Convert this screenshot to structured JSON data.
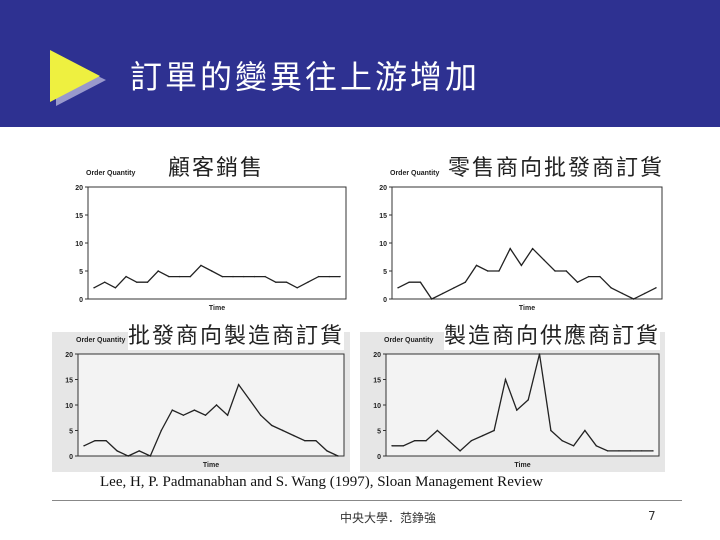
{
  "slide": {
    "title": "訂單的變異往上游增加",
    "citation": "Lee, H, P. Padmanabhan and S. Wang (1997), Sloan Management Review",
    "footer": "中央大學．范錚強",
    "page_number": "7"
  },
  "panel_titles": [
    "顧客銷售",
    "零售商向批發商訂貨",
    "批發商向製造商訂貨",
    "製造商向供應商訂貨"
  ],
  "colors": {
    "header": "#2e3191",
    "arrow": "#eef040",
    "line": "#222222"
  },
  "chart_data": [
    {
      "type": "line",
      "ylabel": "Order Quantity",
      "xlabel": "Time",
      "ylim": [
        0,
        20
      ],
      "yticks": [
        "0",
        "5",
        "10",
        "15",
        "20"
      ],
      "values": [
        2,
        3,
        2,
        4,
        3,
        3,
        5,
        4,
        4,
        4,
        6,
        5,
        4,
        4,
        4,
        4,
        4,
        3,
        3,
        2,
        3,
        4,
        4,
        4
      ]
    },
    {
      "type": "line",
      "ylabel": "Order Quantity",
      "xlabel": "Time",
      "ylim": [
        0,
        20
      ],
      "yticks": [
        "0",
        "5",
        "10",
        "15",
        "20"
      ],
      "values": [
        2,
        3,
        3,
        0,
        1,
        2,
        3,
        6,
        5,
        5,
        9,
        6,
        9,
        7,
        5,
        5,
        3,
        4,
        4,
        2,
        1,
        0,
        1,
        2
      ]
    },
    {
      "type": "line",
      "ylabel": "Order Quantity",
      "xlabel": "Time",
      "ylim": [
        0,
        20
      ],
      "yticks": [
        "0",
        "5",
        "10",
        "15",
        "20"
      ],
      "values": [
        2,
        3,
        3,
        1,
        0,
        1,
        0,
        5,
        9,
        8,
        9,
        8,
        10,
        8,
        14,
        11,
        8,
        6,
        5,
        4,
        3,
        3,
        1,
        0
      ]
    },
    {
      "type": "line",
      "ylabel": "Order Quantity",
      "xlabel": "Time",
      "ylim": [
        0,
        20
      ],
      "yticks": [
        "0",
        "5",
        "10",
        "15",
        "20"
      ],
      "values": [
        2,
        2,
        3,
        3,
        5,
        3,
        1,
        3,
        4,
        5,
        15,
        9,
        11,
        20,
        5,
        3,
        2,
        5,
        2,
        1,
        1,
        1,
        1,
        1
      ]
    }
  ]
}
